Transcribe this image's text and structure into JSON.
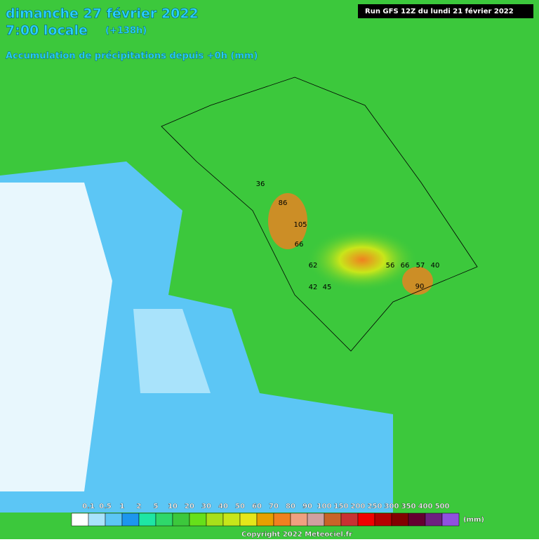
{
  "header": {
    "date": "dimanche 27 février 2022",
    "time": "7:00 locale",
    "lead": "(+138h)",
    "subtitle": "Accumulation de précipitations depuis +0h (mm)",
    "run": "Run GFS 12Z du lundi 21 février 2022"
  },
  "map_labels": [
    86,
    105,
    66,
    62,
    90,
    66,
    57,
    56,
    45,
    42,
    40,
    36
  ],
  "legend": {
    "thresholds": [
      0.1,
      0.5,
      1,
      2,
      5,
      10,
      20,
      30,
      40,
      50,
      60,
      70,
      80,
      90,
      100,
      150,
      200,
      250,
      300,
      350,
      400,
      500
    ],
    "colors": [
      "#ffffff",
      "#a9e3fb",
      "#5cc6f5",
      "#1d96ee",
      "#1ee6a4",
      "#2fd86a",
      "#3cc83c",
      "#66e01a",
      "#a8e01a",
      "#c8e61a",
      "#e6e61a",
      "#e6a000",
      "#f08020",
      "#f0a080",
      "#d0a0a0",
      "#c86428",
      "#c83232",
      "#f00000",
      "#b40000",
      "#820000",
      "#640030",
      "#6e2080",
      "#9050e0"
    ],
    "unit": "(mm)"
  },
  "copyright": "Copyright 2022 Meteociel.fr"
}
